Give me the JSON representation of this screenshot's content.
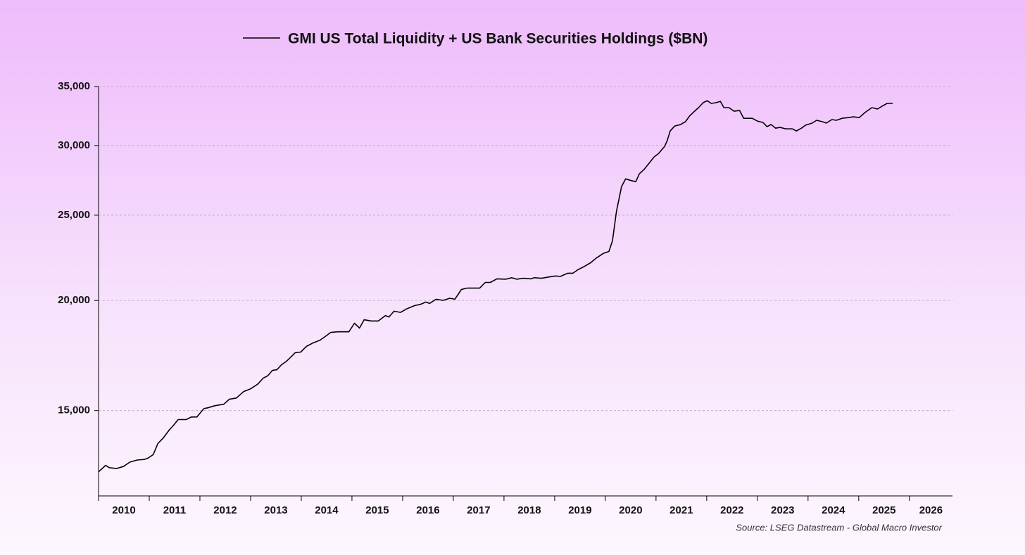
{
  "chart_data": {
    "type": "line",
    "series": [
      {
        "name": "GMI US Total Liquidity + US Bank Securities Holdings ($BN)",
        "color": "#000000",
        "x": [
          2010.0,
          2010.14,
          2010.21,
          2010.35,
          2010.49,
          2010.62,
          2010.76,
          2010.9,
          2010.98,
          2011.08,
          2011.17,
          2011.28,
          2011.39,
          2011.47,
          2011.57,
          2011.73,
          2011.83,
          2011.94,
          2012.08,
          2012.16,
          2012.29,
          2012.47,
          2012.58,
          2012.72,
          2012.86,
          2013.0,
          2013.14,
          2013.25,
          2013.34,
          2013.43,
          2013.52,
          2013.61,
          2013.7,
          2013.77,
          2013.88,
          2013.99,
          2014.1,
          2014.23,
          2014.37,
          2014.47,
          2014.58,
          2014.72,
          2014.85,
          2014.94,
          2015.05,
          2015.15,
          2015.24,
          2015.38,
          2015.52,
          2015.66,
          2015.73,
          2015.83,
          2015.96,
          2016.07,
          2016.24,
          2016.35,
          2016.46,
          2016.53,
          2016.66,
          2016.8,
          2016.93,
          2017.03,
          2017.16,
          2017.27,
          2017.52,
          2017.63,
          2017.73,
          2017.86,
          2018.04,
          2018.15,
          2018.25,
          2018.39,
          2018.53,
          2018.6,
          2018.74,
          2018.88,
          2019.02,
          2019.11,
          2019.26,
          2019.36,
          2019.46,
          2019.57,
          2019.71,
          2019.83,
          2019.96,
          2020.07,
          2020.14,
          2020.22,
          2020.32,
          2020.4,
          2020.49,
          2020.6,
          2020.67,
          2020.76,
          2020.86,
          2020.96,
          2021.05,
          2021.17,
          2021.22,
          2021.28,
          2021.37,
          2021.48,
          2021.58,
          2021.66,
          2021.76,
          2021.84,
          2021.93,
          2022.01,
          2022.09,
          2022.18,
          2022.27,
          2022.34,
          2022.44,
          2022.54,
          2022.65,
          2022.73,
          2022.9,
          2023.0,
          2023.11,
          2023.19,
          2023.27,
          2023.36,
          2023.45,
          2023.56,
          2023.69,
          2023.77,
          2023.87,
          2023.95,
          2024.08,
          2024.17,
          2024.29,
          2024.36,
          2024.47,
          2024.56,
          2024.67,
          2024.79,
          2024.9,
          2025.01,
          2025.12,
          2025.26,
          2025.37,
          2025.46,
          2025.56,
          2025.67
        ],
        "values": [
          12780,
          13000,
          12920,
          12890,
          12960,
          13110,
          13180,
          13200,
          13250,
          13370,
          13760,
          13970,
          14250,
          14410,
          14650,
          14650,
          14750,
          14750,
          15080,
          15110,
          15190,
          15250,
          15450,
          15500,
          15760,
          15880,
          16070,
          16330,
          16430,
          16660,
          16690,
          16910,
          17050,
          17200,
          17450,
          17480,
          17740,
          17900,
          18030,
          18200,
          18400,
          18430,
          18430,
          18430,
          18850,
          18610,
          19020,
          18960,
          18960,
          19230,
          19160,
          19450,
          19390,
          19560,
          19740,
          19800,
          19920,
          19850,
          20070,
          20010,
          20120,
          20070,
          20590,
          20660,
          20660,
          20970,
          20970,
          21170,
          21150,
          21230,
          21150,
          21200,
          21170,
          21230,
          21200,
          21270,
          21330,
          21300,
          21480,
          21480,
          21680,
          21840,
          22080,
          22370,
          22620,
          22740,
          23380,
          25260,
          26940,
          27490,
          27390,
          27290,
          27850,
          28160,
          28620,
          29110,
          29380,
          29930,
          30370,
          31160,
          31570,
          31680,
          31920,
          32390,
          32810,
          33120,
          33550,
          33730,
          33490,
          33550,
          33670,
          33120,
          33120,
          32810,
          32870,
          32210,
          32210,
          31980,
          31860,
          31510,
          31690,
          31390,
          31450,
          31330,
          31330,
          31160,
          31390,
          31630,
          31810,
          32040,
          31920,
          31810,
          32100,
          32040,
          32210,
          32270,
          32330,
          32270,
          32690,
          33120,
          33000,
          33240,
          33490,
          33490
        ]
      }
    ],
    "xlim": [
      2010,
      2026.85
    ],
    "xticks": [
      2010,
      2011,
      2012,
      2013,
      2014,
      2015,
      2016,
      2017,
      2018,
      2019,
      2020,
      2021,
      2022,
      2023,
      2024,
      2025,
      2026
    ],
    "ylim": [
      12000,
      35000
    ],
    "yticks": [
      {
        "value": 15000,
        "label": "15,000"
      },
      {
        "value": 20000,
        "label": "20,000"
      },
      {
        "value": 25000,
        "label": "25,000"
      },
      {
        "value": 30000,
        "label": "30,000"
      },
      {
        "value": 35000,
        "label": "35,000"
      }
    ],
    "log_y": true,
    "grid": true,
    "source": "Source: LSEG Datastream - Global Macro Investor"
  }
}
